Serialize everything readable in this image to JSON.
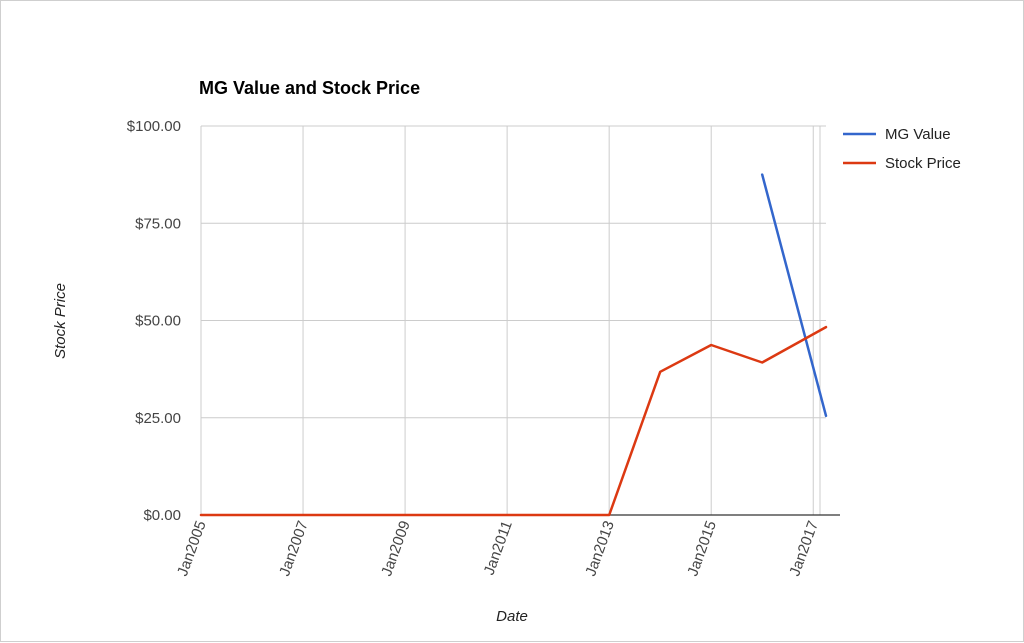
{
  "chart_data": {
    "type": "line",
    "title": "MG Value and Stock Price",
    "xlabel": "Date",
    "ylabel": "Stock Price",
    "x_range": [
      "2005-01",
      "2017-04"
    ],
    "ylim": [
      0,
      100
    ],
    "y_ticks": [
      {
        "value": 0,
        "label": "$0.00"
      },
      {
        "value": 25,
        "label": "$25.00"
      },
      {
        "value": 50,
        "label": "$50.00"
      },
      {
        "value": 75,
        "label": "$75.00"
      },
      {
        "value": 100,
        "label": "$100.00"
      }
    ],
    "x_ticks": [
      {
        "value": "2005-01",
        "label": "Jan2005"
      },
      {
        "value": "2007-01",
        "label": "Jan2007"
      },
      {
        "value": "2009-01",
        "label": "Jan2009"
      },
      {
        "value": "2011-01",
        "label": "Jan2011"
      },
      {
        "value": "2013-01",
        "label": "Jan2013"
      },
      {
        "value": "2015-01",
        "label": "Jan2015"
      },
      {
        "value": "2017-01",
        "label": "Jan2017"
      }
    ],
    "grid": true,
    "legend_position": "right",
    "series": [
      {
        "name": "MG Value",
        "color": "#3366cc",
        "points": [
          {
            "x": "2016-01",
            "y": 87.5
          },
          {
            "x": "2017-04",
            "y": 25.5
          }
        ]
      },
      {
        "name": "Stock Price",
        "color": "#dc3912",
        "points": [
          {
            "x": "2005-01",
            "y": 0
          },
          {
            "x": "2007-01",
            "y": 0
          },
          {
            "x": "2009-01",
            "y": 0
          },
          {
            "x": "2011-01",
            "y": 0
          },
          {
            "x": "2013-01",
            "y": 0
          },
          {
            "x": "2014-01",
            "y": 36.8
          },
          {
            "x": "2015-01",
            "y": 43.7
          },
          {
            "x": "2016-01",
            "y": 39.2
          },
          {
            "x": "2017-04",
            "y": 48.3
          }
        ]
      }
    ]
  }
}
